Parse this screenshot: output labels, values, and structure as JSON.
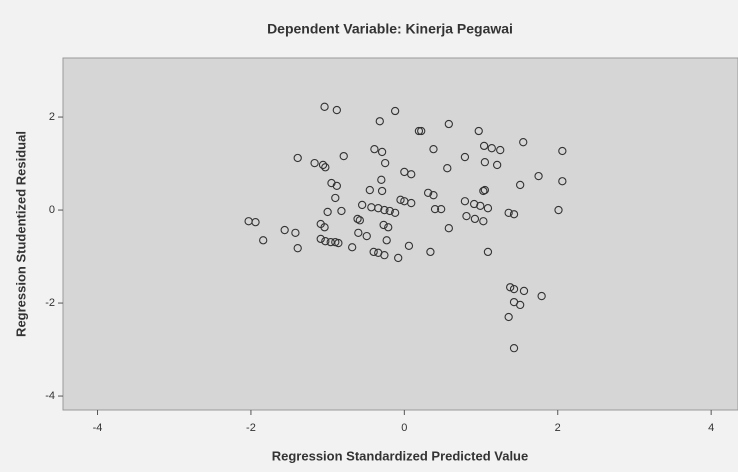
{
  "chart_data": {
    "type": "scatter",
    "title": "Dependent Variable: Kinerja Pegawai",
    "xlabel": "Regression Standardized Predicted Value",
    "ylabel": "Regression Studentized Residual",
    "color": "#333333",
    "xlim": [
      -4.45,
      4.35
    ],
    "ylim": [
      -4.3,
      3.27
    ],
    "xticks": [
      -4,
      -2,
      0,
      2,
      4
    ],
    "yticks": [
      -4,
      -2,
      0,
      2
    ],
    "x": [
      -1.04,
      -0.88,
      -0.12,
      -0.32,
      0.22,
      0.19,
      0.58,
      0.97,
      1.55,
      1.04,
      1.14,
      1.25,
      2.06,
      -0.39,
      -0.29,
      0.38,
      -0.79,
      -1.39,
      -1.17,
      -1.06,
      -1.03,
      -0.25,
      0.79,
      0.56,
      1.05,
      1.21,
      0,
      0.09,
      -0.3,
      1.75,
      1.51,
      2.06,
      -0.95,
      -0.88,
      -0.29,
      -0.45,
      0.31,
      0.38,
      1.03,
      1.05,
      -0.9,
      -0.05,
      0,
      0.09,
      0.79,
      0.91,
      0.99,
      1.09,
      -0.55,
      -0.43,
      -0.34,
      -0.26,
      -0.19,
      -0.12,
      0.4,
      0.48,
      -1.0,
      -0.82,
      1.36,
      1.43,
      2.01,
      0.81,
      0.92,
      1.03,
      -0.61,
      -0.58,
      -0.27,
      -0.21,
      0.58,
      -1.09,
      -1.04,
      -2.03,
      -1.94,
      -1.56,
      -1.42,
      -1.84,
      -0.6,
      -0.49,
      -0.23,
      -1.09,
      -1.03,
      -0.96,
      -0.9,
      -0.86,
      -1.39,
      -0.68,
      0.06,
      -0.4,
      -0.34,
      -0.26,
      -0.08,
      0.34,
      1.09,
      1.38,
      1.43,
      1.56,
      1.79,
      1.43,
      1.51,
      1.36,
      1.43
    ],
    "values": [
      2.22,
      2.15,
      2.13,
      1.91,
      1.7,
      1.7,
      1.85,
      1.7,
      1.46,
      1.38,
      1.33,
      1.29,
      1.27,
      1.31,
      1.25,
      1.31,
      1.16,
      1.12,
      1.01,
      0.97,
      0.92,
      1.01,
      1.14,
      0.9,
      1.03,
      0.97,
      0.82,
      0.77,
      0.65,
      0.73,
      0.54,
      0.62,
      0.58,
      0.52,
      0.41,
      0.43,
      0.37,
      0.32,
      0.41,
      0.43,
      0.26,
      0.22,
      0.19,
      0.15,
      0.19,
      0.13,
      0.09,
      0.04,
      0.11,
      0.06,
      0.04,
      0.0,
      -0.02,
      -0.06,
      0.02,
      0.02,
      -0.04,
      -0.02,
      -0.06,
      -0.09,
      0,
      -0.13,
      -0.19,
      -0.24,
      -0.19,
      -0.22,
      -0.32,
      -0.37,
      -0.39,
      -0.3,
      -0.37,
      -0.24,
      -0.26,
      -0.43,
      -0.49,
      -0.65,
      -0.49,
      -0.56,
      -0.65,
      -0.62,
      -0.67,
      -0.69,
      -0.69,
      -0.71,
      -0.82,
      -0.8,
      -0.77,
      -0.9,
      -0.92,
      -0.97,
      -1.03,
      -0.9,
      -0.9,
      -1.66,
      -1.7,
      -1.74,
      -1.85,
      -1.98,
      -2.04,
      -2.3,
      -2.97
    ]
  }
}
